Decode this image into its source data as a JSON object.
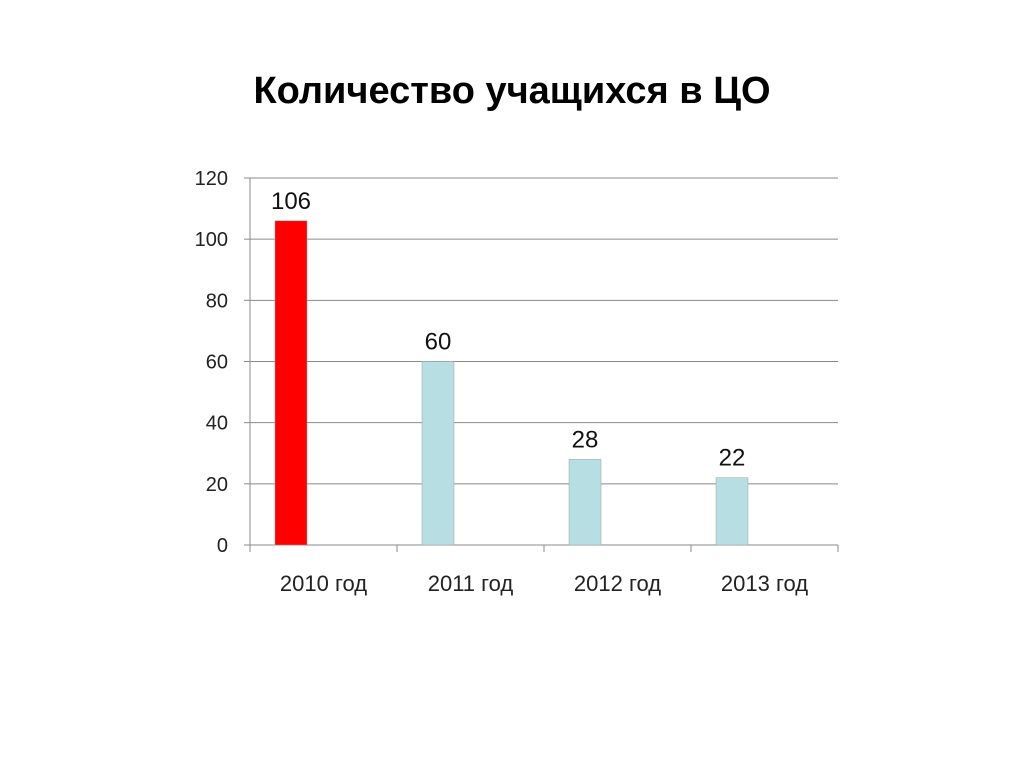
{
  "slide": {
    "title": "Количество учащихся в ЦО"
  },
  "chart_data": {
    "type": "bar",
    "title": "Количество учащихся в ЦО",
    "categories": [
      "2010 год",
      "2011 год",
      "2012 год",
      "2013 год"
    ],
    "values": [
      106,
      60,
      28,
      22
    ],
    "data_labels": [
      "106",
      "60",
      "28",
      "22"
    ],
    "bar_colors": [
      "#ff0000",
      "#b7dee3",
      "#b7dee3",
      "#b7dee3"
    ],
    "ylim": [
      0,
      120
    ],
    "yticks": [
      0,
      20,
      40,
      60,
      80,
      100,
      120
    ],
    "grid": true,
    "legend": "none",
    "xlabel": "",
    "ylabel": ""
  }
}
